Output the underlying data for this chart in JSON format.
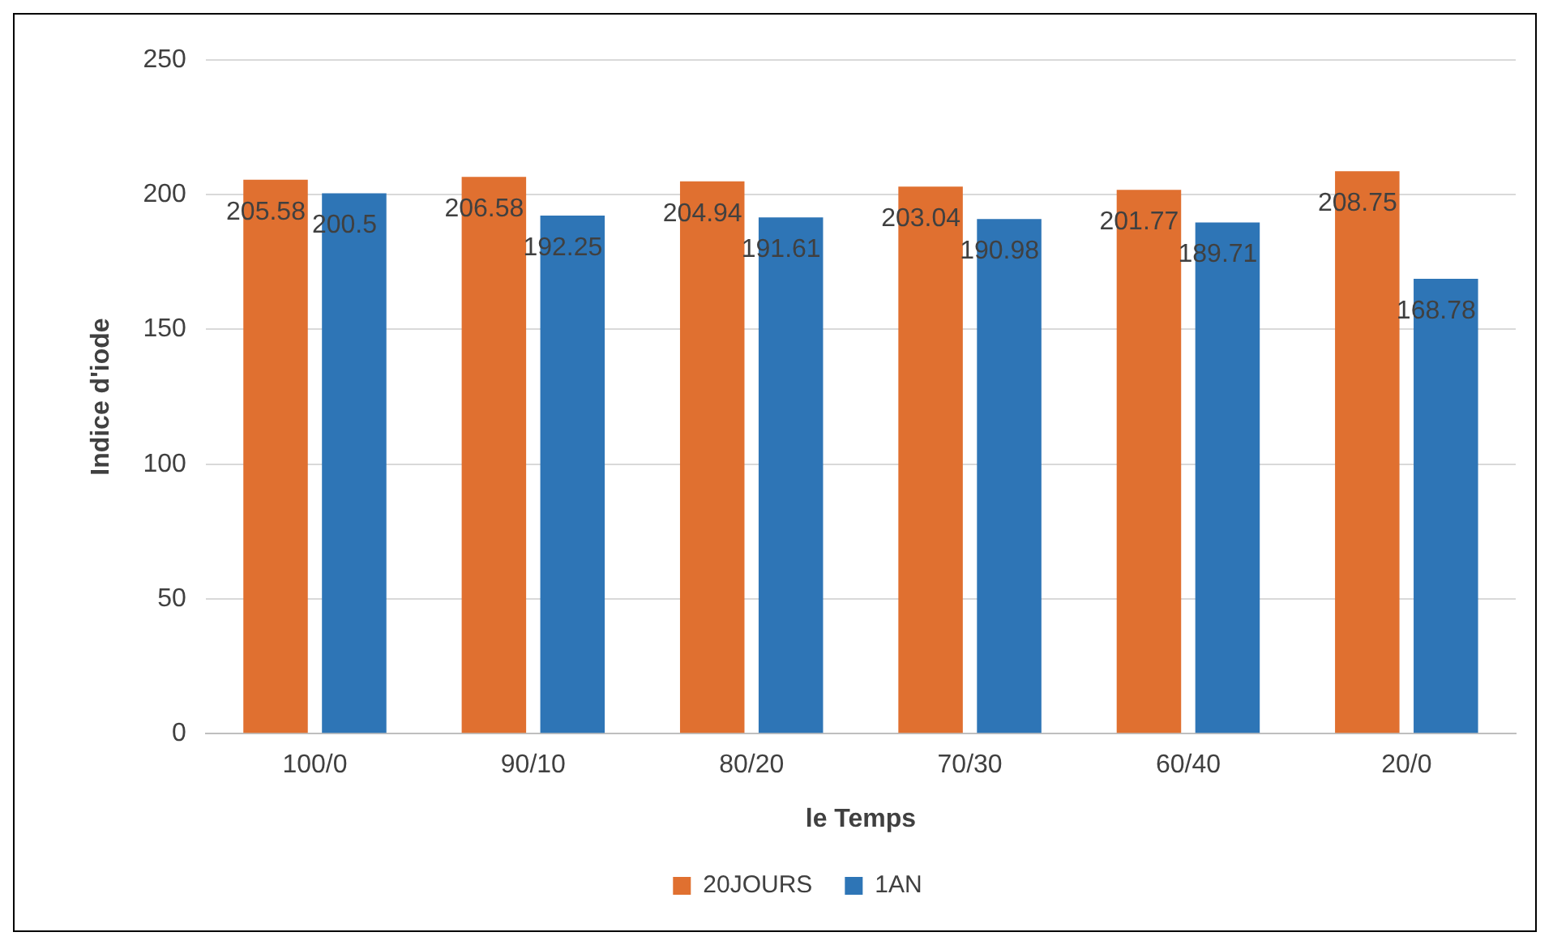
{
  "chart_data": {
    "type": "bar",
    "xlabel": "le Temps",
    "ylabel": "Indice d'iode",
    "categories": [
      "100/0",
      "90/10",
      "80/20",
      "70/30",
      "60/40",
      "20/0"
    ],
    "series": [
      {
        "name": "20JOURS",
        "color": "#e07030",
        "values": [
          205.58,
          206.58,
          204.94,
          203.04,
          201.77,
          208.75
        ]
      },
      {
        "name": "1AN",
        "color": "#2e75b6",
        "values": [
          200.5,
          192.25,
          191.61,
          190.98,
          189.71,
          168.78
        ]
      }
    ],
    "ylim": [
      0,
      250
    ],
    "yticks": [
      0,
      50,
      100,
      150,
      200,
      250
    ],
    "grid": "y",
    "legend": "bottom",
    "data_labels": true
  }
}
